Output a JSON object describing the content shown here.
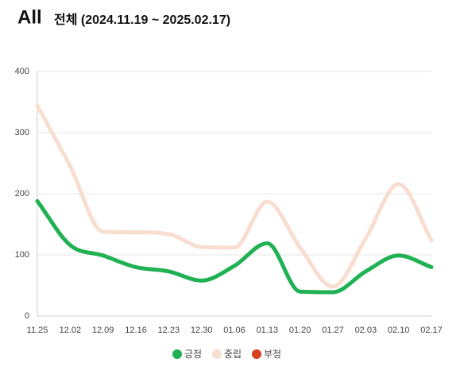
{
  "chart_data": {
    "type": "line",
    "title": "All",
    "subtitle": "전체 (2024.11.19 ~ 2025.02.17)",
    "categories": [
      "11.25",
      "12.02",
      "12.09",
      "12.16",
      "12.23",
      "12.30",
      "01.06",
      "01.13",
      "01.20",
      "01.27",
      "02.03",
      "02.10",
      "02.17"
    ],
    "series": [
      {
        "name": "긍정",
        "color": "#1fb153",
        "values": [
          188,
          116,
          99,
          80,
          73,
          58,
          82,
          119,
          40,
          39,
          73,
          99,
          80
        ]
      },
      {
        "name": "중립",
        "color": "#f8ddd1",
        "values": [
          344,
          245,
          138,
          137,
          134,
          113,
          112,
          187,
          112,
          48,
          127,
          216,
          124
        ]
      },
      {
        "name": "부정",
        "color": "#d9411e",
        "values": [
          null,
          null,
          null,
          null,
          null,
          null,
          null,
          null,
          null,
          null,
          null,
          null,
          null
        ]
      }
    ],
    "ylim": [
      0,
      400
    ],
    "yticks": [
      0,
      100,
      200,
      300,
      400
    ],
    "grid": true
  }
}
